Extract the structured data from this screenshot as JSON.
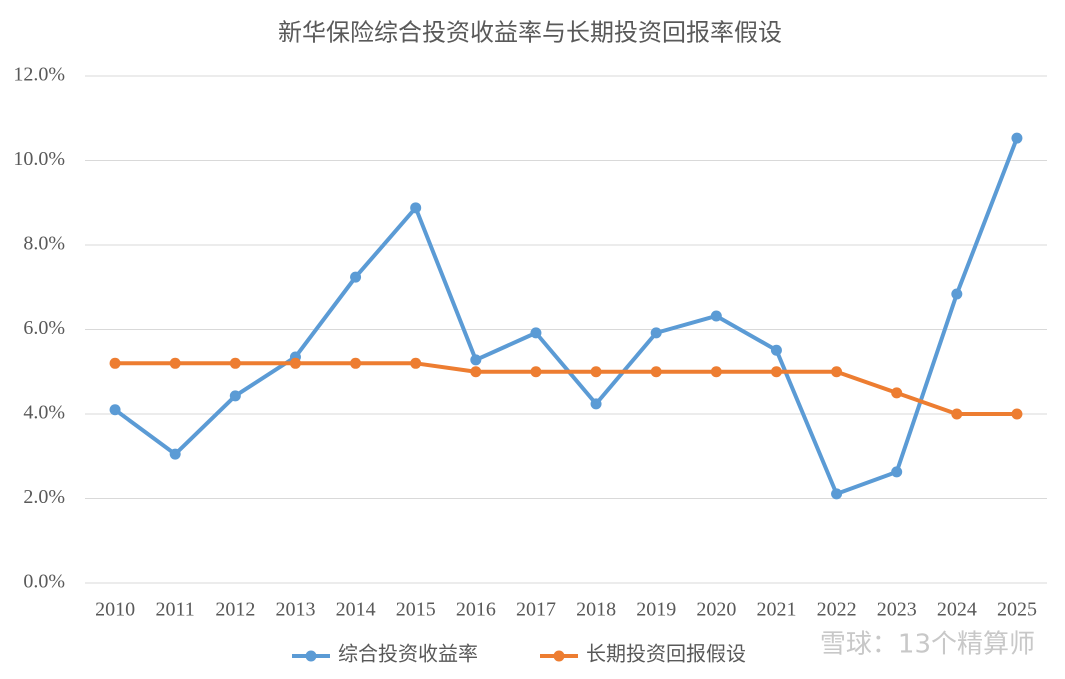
{
  "chart_data": {
    "type": "line",
    "title": "新华保险综合投资收益率与长期投资回报率假设",
    "categories": [
      "2010",
      "2011",
      "2012",
      "2013",
      "2014",
      "2015",
      "2016",
      "2017",
      "2018",
      "2019",
      "2020",
      "2021",
      "2022",
      "2023",
      "2024",
      "2025"
    ],
    "series": [
      {
        "name": "综合投资收益率",
        "color": "#5b9bd5",
        "values": [
          4.1,
          3.05,
          4.43,
          5.35,
          7.24,
          8.88,
          5.28,
          5.92,
          4.24,
          5.92,
          6.32,
          5.51,
          2.11,
          2.63,
          6.84,
          10.53
        ]
      },
      {
        "name": "长期投资回报假设",
        "color": "#ed7d31",
        "values": [
          5.2,
          5.2,
          5.2,
          5.2,
          5.2,
          5.2,
          5.0,
          5.0,
          5.0,
          5.0,
          5.0,
          5.0,
          5.0,
          4.5,
          4.0,
          4.0
        ]
      }
    ],
    "ylim": [
      0,
      12
    ],
    "yticks": [
      {
        "value": 0,
        "label": "0.0%"
      },
      {
        "value": 2,
        "label": "2.0%"
      },
      {
        "value": 4,
        "label": "4.0%"
      },
      {
        "value": 6,
        "label": "6.0%"
      },
      {
        "value": 8,
        "label": "8.0%"
      },
      {
        "value": 10,
        "label": "10.0%"
      },
      {
        "value": 12,
        "label": "12.0%"
      }
    ],
    "grid": true,
    "legend": "bottom",
    "watermark": "雪球：13个精算师"
  }
}
